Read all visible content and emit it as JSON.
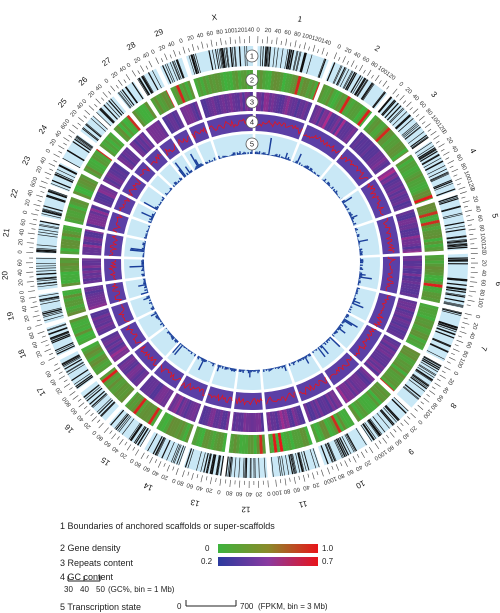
{
  "tracks": [
    {
      "id": "1",
      "description": "1 Boundaries of anchored scaffolds or super-scaffolds"
    },
    {
      "id": "2",
      "description": "2 Gene density"
    },
    {
      "id": "3",
      "description": "3 Repeats content"
    },
    {
      "id": "4",
      "description": "4 GC content"
    },
    {
      "id": "5",
      "description": "5 Transcription state"
    }
  ],
  "chromosomes": [
    "1",
    "2",
    "3",
    "4",
    "5",
    "6",
    "7",
    "8",
    "9",
    "10",
    "11",
    "12",
    "13",
    "14",
    "15",
    "16",
    "17",
    "18",
    "19",
    "20",
    "21",
    "22",
    "23",
    "24",
    "25",
    "26",
    "27",
    "28",
    "29",
    "X"
  ],
  "legend": {
    "gene_scale": {
      "min": "0",
      "max": "1.0",
      "color_low": "#3db33d",
      "color_high": "#e8141a"
    },
    "repeat_scale": {
      "min": "0.2",
      "max": "0.7",
      "color_low": "#2b3a9e",
      "color_high": "#e8141a"
    },
    "gc_ticks": [
      "30",
      "40",
      "50"
    ],
    "gc_unit": "(GC%, bin = 1 Mb)",
    "transcription_min": "0",
    "transcription_max": "700",
    "transcription_unit": "(FPKM, bin = 3 Mb)"
  },
  "colors": {
    "track_bg": "#c9e8f6",
    "gc_line": "#e8141a",
    "transcription_fill": "#1a3e9a",
    "tick": "#444444",
    "scaffold_line": "#111111"
  }
}
